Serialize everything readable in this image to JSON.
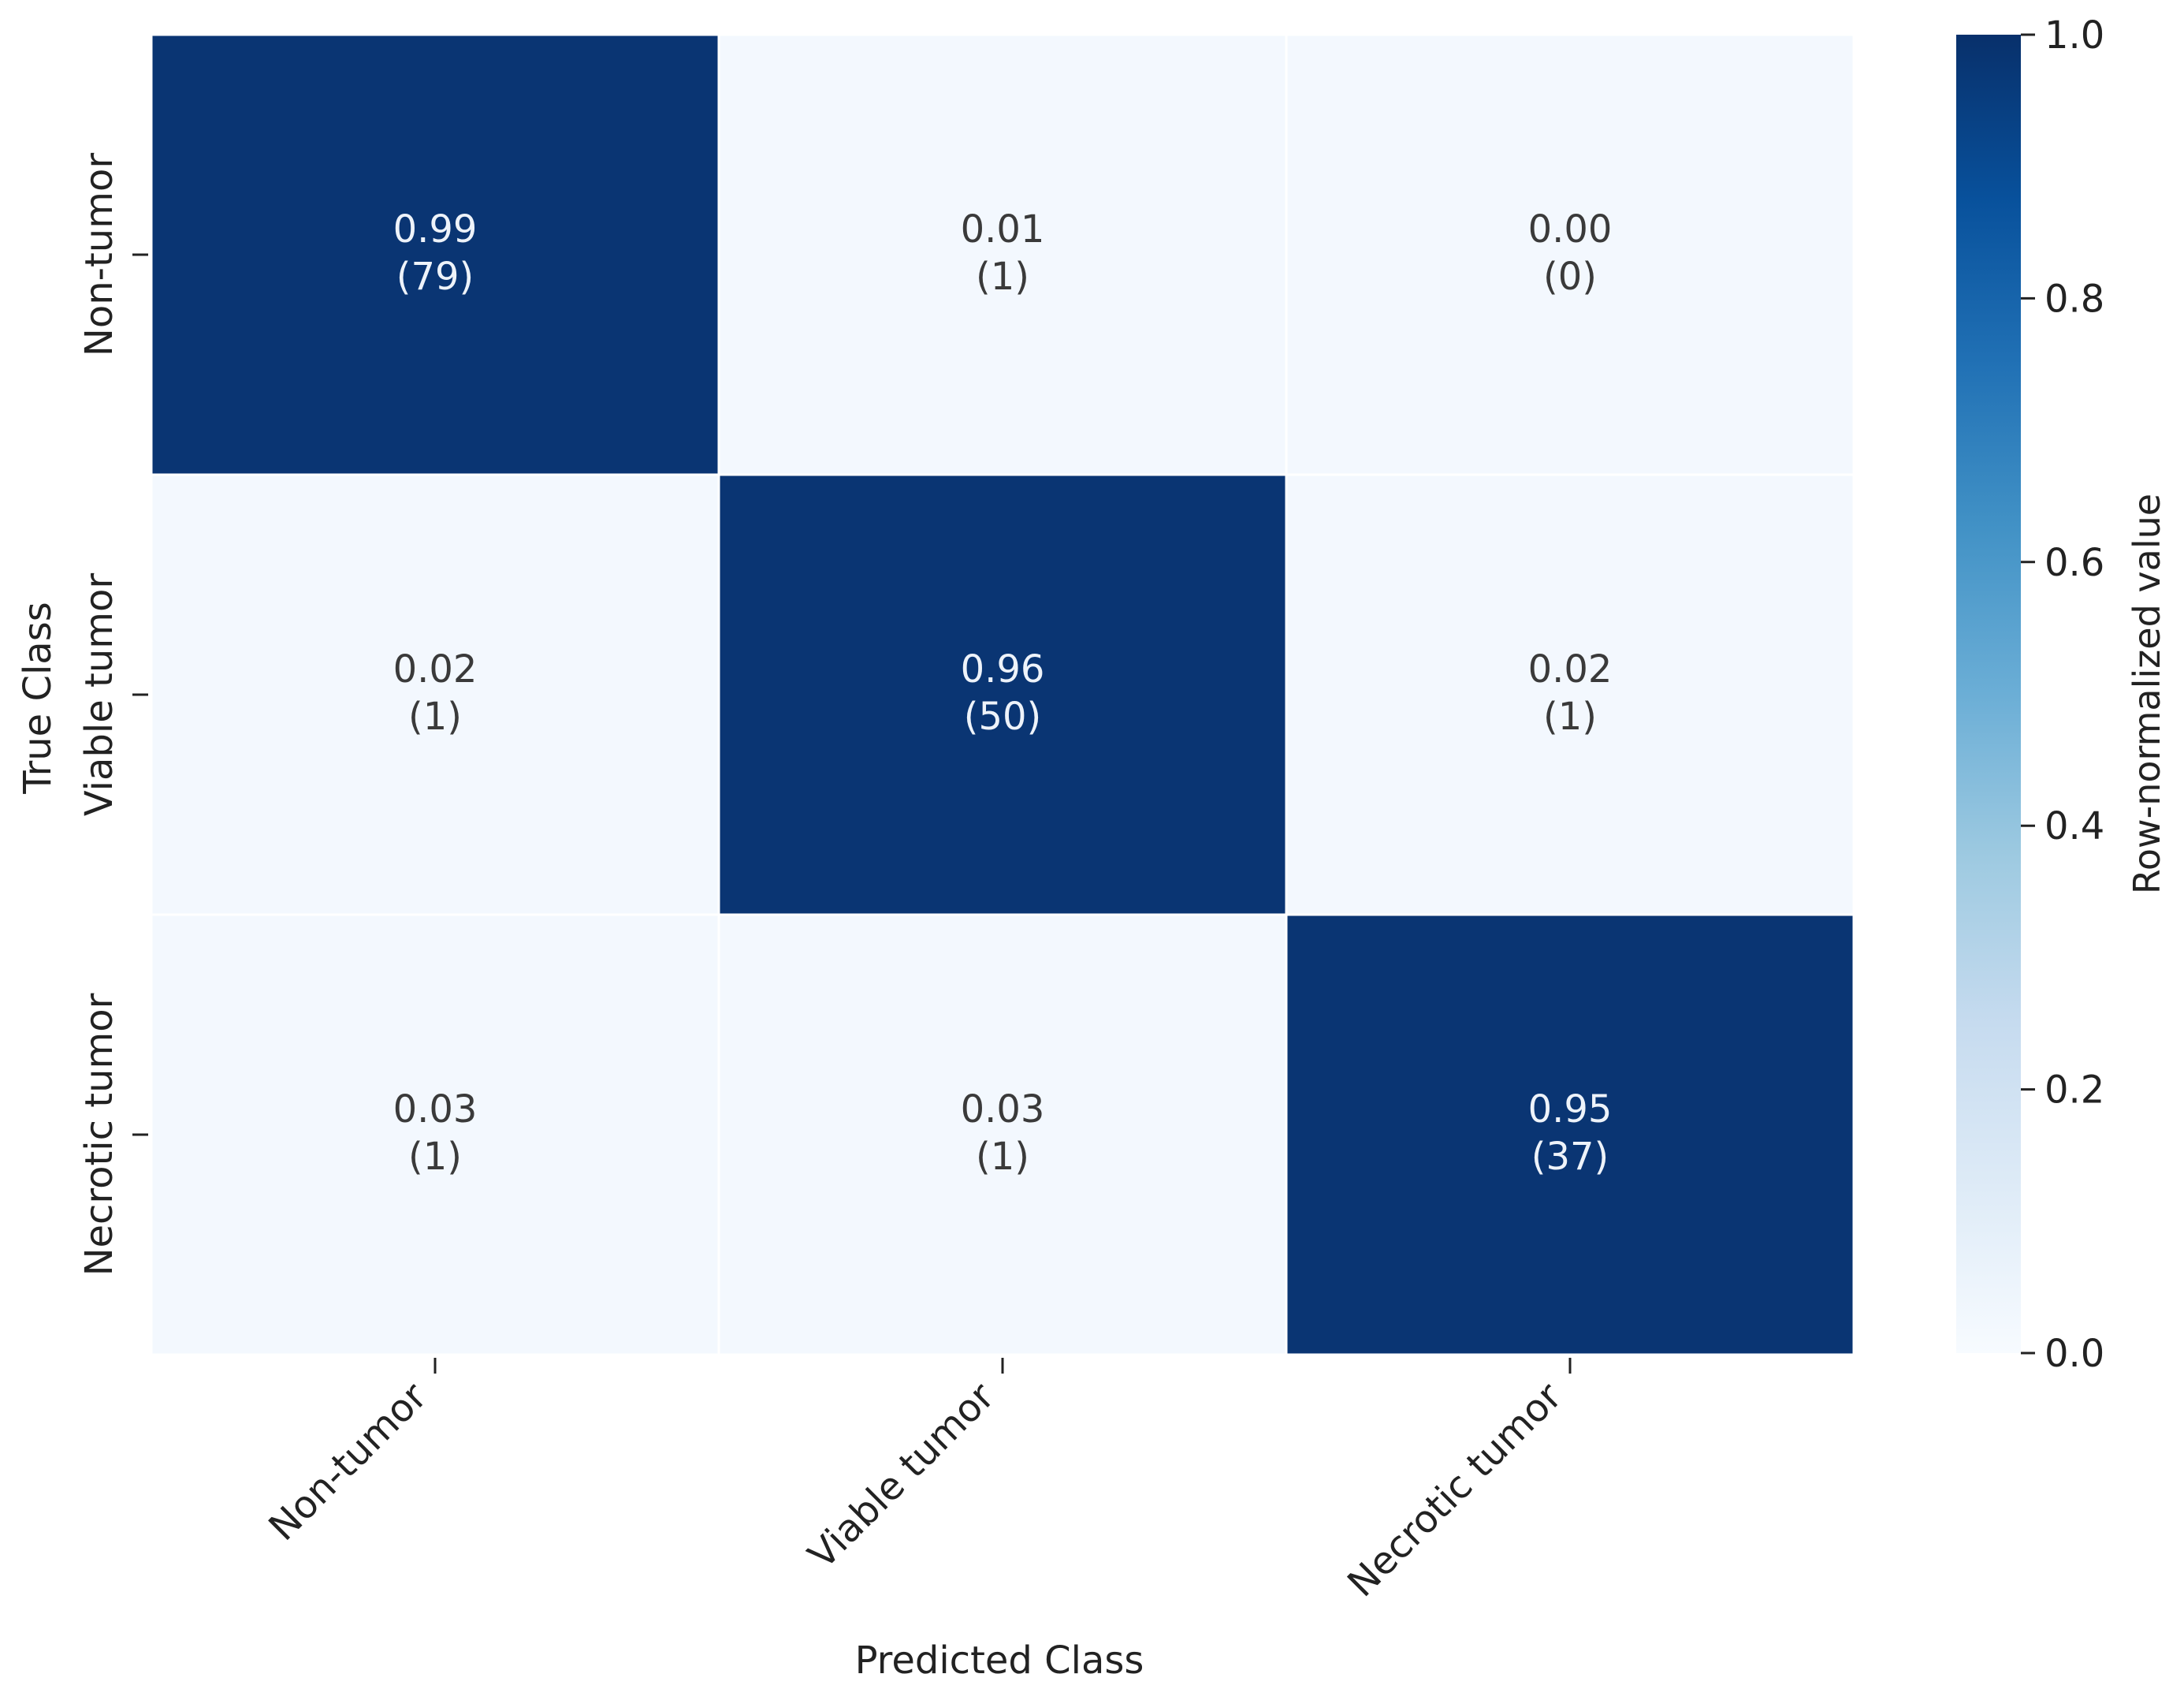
{
  "chart_data": {
    "type": "heatmap",
    "title": "",
    "xlabel": "Predicted Class",
    "ylabel": "True Class",
    "x_categories": [
      "Non-tumor",
      "Viable tumor",
      "Necrotic tumor"
    ],
    "y_categories": [
      "Non-tumor",
      "Viable tumor",
      "Necrotic tumor"
    ],
    "values": [
      [
        0.99,
        0.01,
        0.0
      ],
      [
        0.02,
        0.96,
        0.02
      ],
      [
        0.03,
        0.03,
        0.95
      ]
    ],
    "value_labels": [
      [
        "0.99",
        "0.01",
        "0.00"
      ],
      [
        "0.02",
        "0.96",
        "0.02"
      ],
      [
        "0.03",
        "0.03",
        "0.95"
      ]
    ],
    "count_labels": [
      [
        "(79)",
        "(1)",
        "(0)"
      ],
      [
        "(1)",
        "(50)",
        "(1)"
      ],
      [
        "(1)",
        "(1)",
        "(37)"
      ]
    ],
    "colorbar": {
      "label": "Row-normalized value",
      "range": [
        0.0,
        1.0
      ],
      "ticks": [
        "0.0",
        "0.2",
        "0.4",
        "0.6",
        "0.8",
        "1.0"
      ],
      "colormap": "Blues"
    },
    "colors": {
      "dark_cell": "#0a3573",
      "light_cell": "#f3f8fe",
      "dark_text": "#eef3fa",
      "light_text": "#3a3a3a"
    }
  }
}
